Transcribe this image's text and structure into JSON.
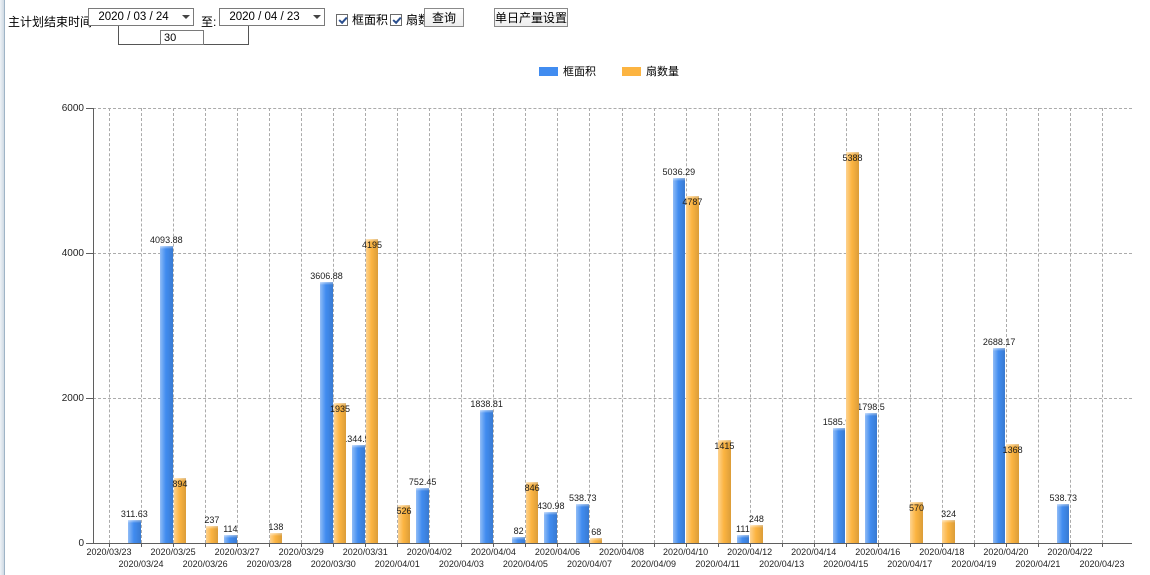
{
  "toolbar": {
    "label_end_time": "主计划结束时间:",
    "start_date": "2020 / 03 / 24",
    "label_to": "至:",
    "end_date": "2020 / 04 / 23",
    "days_between": "30",
    "checkbox_frame_area": "框面积",
    "checkbox_fan_count": "扇数量",
    "query_button": "查询",
    "daily_output_button": "单日产量设置"
  },
  "legend": {
    "items": [
      {
        "label": "框面积",
        "color": "#418CF0"
      },
      {
        "label": "扇数量",
        "color": "#FCB441"
      }
    ]
  },
  "chart_data": {
    "type": "bar",
    "title": "",
    "xlabel": "",
    "ylabel": "",
    "ylim": [
      0,
      6000
    ],
    "yticks": [
      0,
      2000,
      4000,
      6000
    ],
    "grid": "dashed vertical per day, dashed horizontal per 2000",
    "legend_position": "top center",
    "bar_value_labels": true,
    "categories": [
      "2020/03/23",
      "2020/03/24",
      "2020/03/25",
      "2020/03/26",
      "2020/03/27",
      "2020/03/28",
      "2020/03/29",
      "2020/03/30",
      "2020/03/31",
      "2020/04/01",
      "2020/04/02",
      "2020/04/03",
      "2020/04/04",
      "2020/04/05",
      "2020/04/06",
      "2020/04/07",
      "2020/04/08",
      "2020/04/09",
      "2020/04/10",
      "2020/04/11",
      "2020/04/12",
      "2020/04/13",
      "2020/04/14",
      "2020/04/15",
      "2020/04/16",
      "2020/04/17",
      "2020/04/18",
      "2020/04/19",
      "2020/04/20",
      "2020/04/21",
      "2020/04/22",
      "2020/04/23"
    ],
    "series": [
      {
        "name": "框面积",
        "key": "frame-area",
        "color": "#418CF0",
        "values": [
          null,
          311.63,
          4093.88,
          null,
          114,
          null,
          null,
          3606.88,
          1344.95,
          null,
          752.45,
          null,
          1838.81,
          82,
          430.98,
          538.73,
          null,
          null,
          5036.29,
          null,
          111,
          null,
          null,
          1585.96,
          1798.5,
          null,
          null,
          null,
          2688.17,
          null,
          538.73,
          null
        ]
      },
      {
        "name": "扇数量",
        "key": "fan-count",
        "color": "#FCB441",
        "values": [
          null,
          null,
          894,
          237,
          null,
          138,
          null,
          1935,
          4195,
          526,
          null,
          null,
          null,
          846,
          null,
          68,
          null,
          null,
          4787,
          1415,
          248,
          null,
          null,
          5388,
          null,
          570,
          324,
          null,
          1368,
          null,
          null,
          null
        ]
      }
    ]
  }
}
